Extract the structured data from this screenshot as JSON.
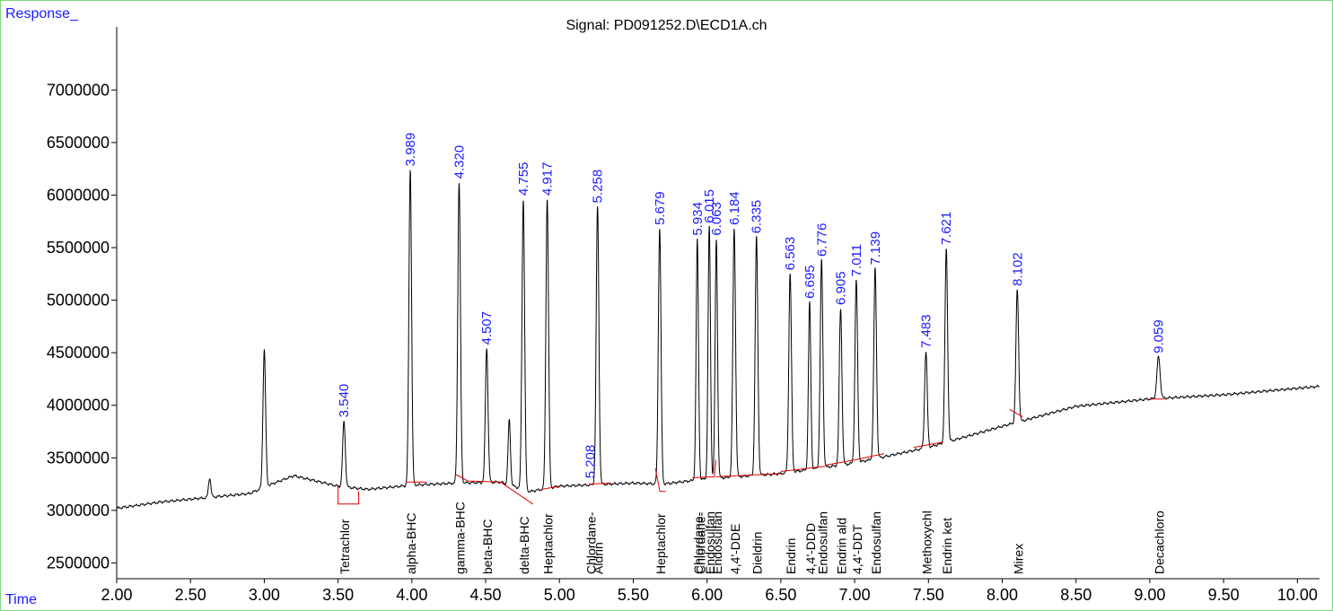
{
  "chart_data": {
    "type": "line",
    "title": "Signal: PD091252.D\\ECD1A.ch",
    "ylabel": "Response_",
    "xlabel": "Time",
    "xlim": [
      2.0,
      10.15
    ],
    "ylim": [
      2350000,
      7600000
    ],
    "x_ticks": [
      "2.00",
      "2.50",
      "3.00",
      "3.50",
      "4.00",
      "4.50",
      "5.00",
      "5.50",
      "6.00",
      "6.50",
      "7.00",
      "7.50",
      "8.00",
      "8.50",
      "9.00",
      "9.50",
      "10.00"
    ],
    "y_ticks": [
      "2500000",
      "3000000",
      "3500000",
      "4000000",
      "4500000",
      "5000000",
      "5500000",
      "6000000",
      "6500000",
      "7000000"
    ],
    "baseline": [
      [
        2.0,
        3020000
      ],
      [
        2.3,
        3080000
      ],
      [
        2.6,
        3120000
      ],
      [
        2.9,
        3160000
      ],
      [
        3.05,
        3250000
      ],
      [
        3.2,
        3330000
      ],
      [
        3.35,
        3280000
      ],
      [
        3.5,
        3230000
      ],
      [
        3.7,
        3200000
      ],
      [
        4.0,
        3240000
      ],
      [
        4.3,
        3260000
      ],
      [
        4.6,
        3270000
      ],
      [
        4.8,
        3180000
      ],
      [
        5.0,
        3230000
      ],
      [
        5.5,
        3260000
      ],
      [
        5.7,
        3250000
      ],
      [
        6.0,
        3300000
      ],
      [
        6.5,
        3350000
      ],
      [
        7.0,
        3450000
      ],
      [
        7.5,
        3600000
      ],
      [
        8.0,
        3800000
      ],
      [
        8.5,
        3990000
      ],
      [
        9.0,
        4060000
      ],
      [
        9.5,
        4100000
      ],
      [
        10.15,
        4180000
      ]
    ],
    "peaks": [
      {
        "rt": 2.63,
        "h": 3310000,
        "w": 0.008
      },
      {
        "rt": 3.0,
        "h": 4530000,
        "w": 0.009
      },
      {
        "rt": 3.54,
        "h": 3850000,
        "w": 0.009
      },
      {
        "rt": 3.989,
        "h": 6240000,
        "w": 0.009
      },
      {
        "rt": 4.32,
        "h": 6120000,
        "w": 0.009
      },
      {
        "rt": 4.507,
        "h": 4540000,
        "w": 0.009
      },
      {
        "rt": 4.66,
        "h": 3860000,
        "w": 0.008
      },
      {
        "rt": 4.755,
        "h": 5960000,
        "w": 0.009
      },
      {
        "rt": 4.917,
        "h": 5960000,
        "w": 0.009
      },
      {
        "rt": 5.258,
        "h": 5890000,
        "w": 0.009
      },
      {
        "rt": 5.679,
        "h": 5680000,
        "w": 0.009
      },
      {
        "rt": 5.934,
        "h": 5580000,
        "w": 0.008
      },
      {
        "rt": 6.015,
        "h": 5700000,
        "w": 0.008
      },
      {
        "rt": 6.063,
        "h": 5580000,
        "w": 0.008
      },
      {
        "rt": 6.184,
        "h": 5680000,
        "w": 0.009
      },
      {
        "rt": 6.335,
        "h": 5600000,
        "w": 0.009
      },
      {
        "rt": 6.563,
        "h": 5250000,
        "w": 0.009
      },
      {
        "rt": 6.695,
        "h": 4980000,
        "w": 0.008
      },
      {
        "rt": 6.776,
        "h": 5380000,
        "w": 0.009
      },
      {
        "rt": 6.905,
        "h": 4920000,
        "w": 0.009
      },
      {
        "rt": 7.011,
        "h": 5190000,
        "w": 0.009
      },
      {
        "rt": 7.139,
        "h": 5300000,
        "w": 0.009
      },
      {
        "rt": 7.483,
        "h": 4510000,
        "w": 0.009
      },
      {
        "rt": 7.621,
        "h": 5490000,
        "w": 0.009
      },
      {
        "rt": 8.102,
        "h": 5100000,
        "w": 0.009
      },
      {
        "rt": 9.059,
        "h": 4460000,
        "w": 0.011
      }
    ],
    "rt_labels": [
      {
        "rt": 3.54,
        "text": "3.540",
        "y": 3850000
      },
      {
        "rt": 3.989,
        "text": "3.989",
        "y": 6240000
      },
      {
        "rt": 4.32,
        "text": "4.320",
        "y": 6120000
      },
      {
        "rt": 4.507,
        "text": "4.507",
        "y": 4540000
      },
      {
        "rt": 4.755,
        "text": "4.755",
        "y": 5960000
      },
      {
        "rt": 4.917,
        "text": "4.917",
        "y": 5960000
      },
      {
        "rt": 5.208,
        "text": "5.208",
        "y": 3270000
      },
      {
        "rt": 5.258,
        "text": "5.258",
        "y": 5890000
      },
      {
        "rt": 5.679,
        "text": "5.679",
        "y": 5680000
      },
      {
        "rt": 5.934,
        "text": "5.934",
        "y": 5580000
      },
      {
        "rt": 6.015,
        "text": "6.015",
        "y": 5700000
      },
      {
        "rt": 6.063,
        "text": "6.063",
        "y": 5580000
      },
      {
        "rt": 6.184,
        "text": "6.184",
        "y": 5680000
      },
      {
        "rt": 6.335,
        "text": "6.335",
        "y": 5600000
      },
      {
        "rt": 6.563,
        "text": "6.563",
        "y": 5250000
      },
      {
        "rt": 6.695,
        "text": "6.695",
        "y": 4980000
      },
      {
        "rt": 6.776,
        "text": "6.776",
        "y": 5380000
      },
      {
        "rt": 6.905,
        "text": "6.905",
        "y": 4920000
      },
      {
        "rt": 7.011,
        "text": "7.011",
        "y": 5190000
      },
      {
        "rt": 7.139,
        "text": "7.139",
        "y": 5300000
      },
      {
        "rt": 7.483,
        "text": "7.483",
        "y": 4510000
      },
      {
        "rt": 7.621,
        "text": "7.621",
        "y": 5490000
      },
      {
        "rt": 8.102,
        "text": "8.102",
        "y": 5100000
      },
      {
        "rt": 9.059,
        "text": "9.059",
        "y": 4460000
      }
    ],
    "compound_labels": [
      {
        "rt": 3.54,
        "text": "Tetrachlor"
      },
      {
        "rt": 3.989,
        "text": "alpha-BHC"
      },
      {
        "rt": 4.32,
        "text": "gamma-BHC"
      },
      {
        "rt": 4.507,
        "text": "beta-BHC"
      },
      {
        "rt": 4.755,
        "text": "delta-BHC"
      },
      {
        "rt": 4.917,
        "text": "Heptachlor"
      },
      {
        "rt": 5.208,
        "text": "Chlordane-"
      },
      {
        "rt": 5.258,
        "text": "Aldrin"
      },
      {
        "rt": 5.679,
        "text": "Heptachlor"
      },
      {
        "rt": 5.934,
        "text": "Chlordane-"
      },
      {
        "rt": 5.95,
        "text": "Chlordane-"
      },
      {
        "rt": 6.015,
        "text": "Endosulfan"
      },
      {
        "rt": 6.063,
        "text": "Endosulfan"
      },
      {
        "rt": 6.184,
        "text": "4,4'-DDE"
      },
      {
        "rt": 6.335,
        "text": "Dieldrin"
      },
      {
        "rt": 6.563,
        "text": "Endrin"
      },
      {
        "rt": 6.695,
        "text": "4,4'-DDD"
      },
      {
        "rt": 6.776,
        "text": "Endosulfan"
      },
      {
        "rt": 6.905,
        "text": "Endrin ald"
      },
      {
        "rt": 7.011,
        "text": "4,4'-DDT"
      },
      {
        "rt": 7.139,
        "text": "Endosulfan"
      },
      {
        "rt": 7.483,
        "text": "Methoxychl"
      },
      {
        "rt": 7.621,
        "text": "Endrin ket"
      },
      {
        "rt": 8.102,
        "text": "Mirex"
      },
      {
        "rt": 9.059,
        "text": "Decachloro"
      }
    ],
    "integration_segments": [
      [
        [
          3.5,
          3230000
        ],
        [
          3.5,
          3060000
        ],
        [
          3.64,
          3060000
        ],
        [
          3.64,
          3180000
        ]
      ],
      [
        [
          3.96,
          3270000
        ],
        [
          4.1,
          3270000
        ]
      ],
      [
        [
          4.3,
          3340000
        ],
        [
          4.38,
          3280000
        ],
        [
          4.6,
          3270000
        ]
      ],
      [
        [
          4.6,
          3270000
        ],
        [
          4.82,
          3060000
        ]
      ],
      [
        [
          4.88,
          3200000
        ],
        [
          5.0,
          3230000
        ]
      ],
      [
        [
          5.2,
          3250000
        ],
        [
          5.35,
          3260000
        ]
      ],
      [
        [
          5.65,
          3400000
        ],
        [
          5.68,
          3180000
        ],
        [
          5.72,
          3180000
        ]
      ],
      [
        [
          5.9,
          3310000
        ],
        [
          6.05,
          3320000
        ]
      ],
      [
        [
          6.05,
          3320000
        ],
        [
          6.06,
          3480000
        ]
      ],
      [
        [
          6.06,
          3320000
        ],
        [
          6.5,
          3350000
        ]
      ],
      [
        [
          6.5,
          3370000
        ],
        [
          6.8,
          3420000
        ]
      ],
      [
        [
          6.8,
          3430000
        ],
        [
          7.0,
          3480000
        ],
        [
          7.2,
          3540000
        ]
      ],
      [
        [
          7.4,
          3600000
        ],
        [
          7.6,
          3650000
        ]
      ],
      [
        [
          8.05,
          3960000
        ],
        [
          8.14,
          3890000
        ]
      ],
      [
        [
          9.0,
          4060000
        ],
        [
          9.1,
          4060000
        ]
      ]
    ],
    "colors": {
      "trace": "#000000",
      "integration": "#e00000",
      "rt_label": "#1a1aff",
      "frame": "#7ed87e"
    },
    "grid": false
  }
}
